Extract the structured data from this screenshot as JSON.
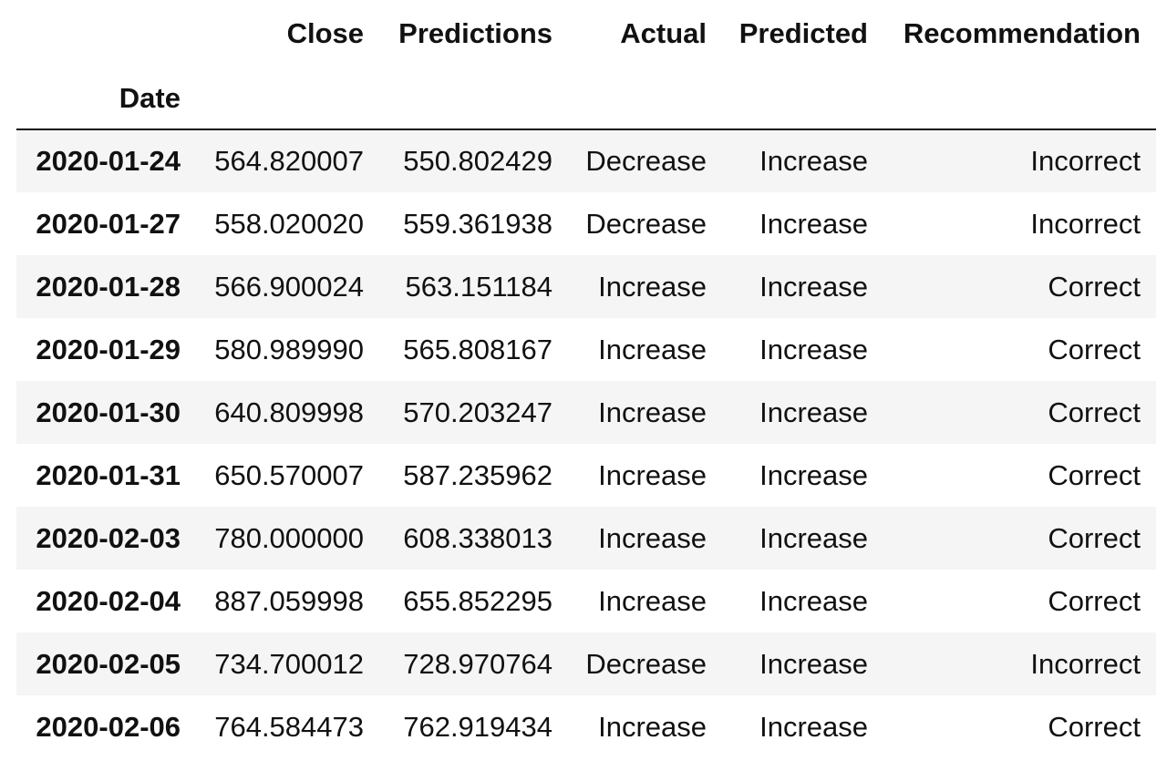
{
  "table": {
    "columns": [
      "Close",
      "Predictions",
      "Actual",
      "Predicted",
      "Recommendation"
    ],
    "index_name": "Date",
    "rows": [
      {
        "date": "2020-01-24",
        "close": "564.820007",
        "predictions": "550.802429",
        "actual": "Decrease",
        "predicted": "Increase",
        "recommendation": "Incorrect"
      },
      {
        "date": "2020-01-27",
        "close": "558.020020",
        "predictions": "559.361938",
        "actual": "Decrease",
        "predicted": "Increase",
        "recommendation": "Incorrect"
      },
      {
        "date": "2020-01-28",
        "close": "566.900024",
        "predictions": "563.151184",
        "actual": "Increase",
        "predicted": "Increase",
        "recommendation": "Correct"
      },
      {
        "date": "2020-01-29",
        "close": "580.989990",
        "predictions": "565.808167",
        "actual": "Increase",
        "predicted": "Increase",
        "recommendation": "Correct"
      },
      {
        "date": "2020-01-30",
        "close": "640.809998",
        "predictions": "570.203247",
        "actual": "Increase",
        "predicted": "Increase",
        "recommendation": "Correct"
      },
      {
        "date": "2020-01-31",
        "close": "650.570007",
        "predictions": "587.235962",
        "actual": "Increase",
        "predicted": "Increase",
        "recommendation": "Correct"
      },
      {
        "date": "2020-02-03",
        "close": "780.000000",
        "predictions": "608.338013",
        "actual": "Increase",
        "predicted": "Increase",
        "recommendation": "Correct"
      },
      {
        "date": "2020-02-04",
        "close": "887.059998",
        "predictions": "655.852295",
        "actual": "Increase",
        "predicted": "Increase",
        "recommendation": "Correct"
      },
      {
        "date": "2020-02-05",
        "close": "734.700012",
        "predictions": "728.970764",
        "actual": "Decrease",
        "predicted": "Increase",
        "recommendation": "Incorrect"
      },
      {
        "date": "2020-02-06",
        "close": "764.584473",
        "predictions": "762.919434",
        "actual": "Increase",
        "predicted": "Increase",
        "recommendation": "Correct"
      }
    ]
  }
}
